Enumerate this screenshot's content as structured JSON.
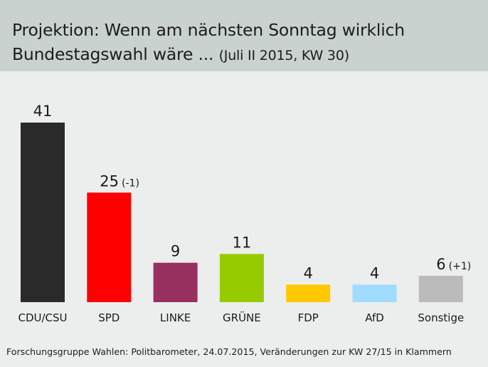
{
  "header": {
    "title_line1": "Projektion: Wenn am nächsten Sonntag wirklich",
    "title_line2_main": "Bundestagswahl wäre ... ",
    "title_line2_sub": "(Juli II 2015, KW 30)"
  },
  "footer": {
    "source": "Forschungsgruppe Wahlen: Politbarometer, 24.07.2015, Veränderungen zur KW 27/15 in Klammern"
  },
  "chart_data": {
    "type": "bar",
    "title": "Projektion: Wenn am nächsten Sonntag wirklich Bundestagswahl wäre ... (Juli II 2015, KW 30)",
    "xlabel": "",
    "ylabel": "",
    "ylim": [
      0,
      41
    ],
    "grid": false,
    "legend": "none",
    "categories": [
      "CDU/CSU",
      "SPD",
      "LINKE",
      "GRÜNE",
      "FDP",
      "AfD",
      "Sonstige"
    ],
    "values": [
      41,
      25,
      9,
      11,
      4,
      4,
      6
    ],
    "changes": [
      "",
      "(-1)",
      "",
      "",
      "",
      "",
      "(+1)"
    ],
    "colors": [
      "#2a2a2a",
      "#ff0000",
      "#98305f",
      "#96cb00",
      "#ffc800",
      "#9fdcff",
      "#bbbbbb"
    ]
  }
}
